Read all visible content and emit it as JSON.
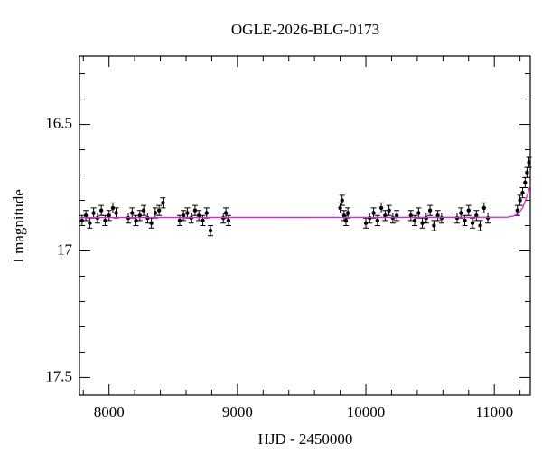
{
  "chart_data": {
    "type": "scatter",
    "title": "OGLE-2026-BLG-0173",
    "x_label": "HJD - 2450000",
    "y_label": "I magnitude",
    "xlim": [
      7770,
      11280
    ],
    "ylim": [
      17.57,
      16.23
    ],
    "xticks": [
      8000,
      9000,
      10000,
      11000
    ],
    "yticks": [
      16.5,
      17,
      17.5
    ],
    "xminor_ticks": [
      7800,
      8200,
      8400,
      8600,
      8800,
      9200,
      9400,
      9600,
      9800,
      10200,
      10400,
      10600,
      10800,
      11200
    ],
    "yminor_ticks": [
      16.3,
      16.4,
      16.6,
      16.7,
      16.8,
      16.9,
      17.1,
      17.2,
      17.3,
      17.4
    ],
    "series": [
      {
        "type": "scatter",
        "color": "#000000",
        "x": [
          7790,
          7820,
          7850,
          7880,
          7910,
          7940,
          7970,
          8000,
          8030,
          8055,
          8150,
          8180,
          8210,
          8240,
          8270,
          8300,
          8330,
          8360,
          8390,
          8420,
          8550,
          8580,
          8610,
          8640,
          8670,
          8700,
          8730,
          8760,
          8790,
          8890,
          8910,
          8930,
          9800,
          9815,
          9830,
          9845,
          9860,
          10000,
          10030,
          10060,
          10090,
          10120,
          10150,
          10180,
          10210,
          10240,
          10350,
          10380,
          10410,
          10440,
          10470,
          10500,
          10530,
          10560,
          10590,
          10710,
          10740,
          10770,
          10800,
          10830,
          10860,
          10890,
          10920,
          10950,
          11180,
          11200,
          11220,
          11240,
          11255,
          11270
        ],
        "values": [
          16.88,
          16.86,
          16.89,
          16.85,
          16.87,
          16.84,
          16.88,
          16.86,
          16.83,
          16.85,
          16.87,
          16.85,
          16.88,
          16.86,
          16.84,
          16.87,
          16.89,
          16.85,
          16.84,
          16.81,
          16.88,
          16.86,
          16.85,
          16.87,
          16.84,
          16.86,
          16.88,
          16.85,
          16.92,
          16.87,
          16.85,
          16.88,
          16.83,
          16.8,
          16.86,
          16.88,
          16.85,
          16.89,
          16.87,
          16.85,
          16.88,
          16.83,
          16.86,
          16.84,
          16.87,
          16.86,
          16.86,
          16.88,
          16.85,
          16.89,
          16.87,
          16.84,
          16.9,
          16.86,
          16.87,
          16.87,
          16.85,
          16.88,
          16.84,
          16.89,
          16.86,
          16.9,
          16.83,
          16.87,
          16.84,
          16.8,
          16.77,
          16.73,
          16.69,
          16.65
        ],
        "errors": [
          0.02,
          0.02,
          0.02,
          0.02,
          0.02,
          0.02,
          0.02,
          0.02,
          0.02,
          0.02,
          0.02,
          0.02,
          0.02,
          0.02,
          0.02,
          0.02,
          0.02,
          0.02,
          0.02,
          0.02,
          0.02,
          0.02,
          0.02,
          0.02,
          0.02,
          0.02,
          0.02,
          0.02,
          0.02,
          0.02,
          0.02,
          0.02,
          0.02,
          0.02,
          0.02,
          0.02,
          0.02,
          0.02,
          0.02,
          0.02,
          0.02,
          0.02,
          0.02,
          0.02,
          0.02,
          0.02,
          0.02,
          0.02,
          0.02,
          0.02,
          0.02,
          0.02,
          0.02,
          0.02,
          0.02,
          0.02,
          0.02,
          0.02,
          0.02,
          0.02,
          0.02,
          0.02,
          0.02,
          0.02,
          0.02,
          0.02,
          0.02,
          0.02,
          0.02,
          0.02
        ]
      },
      {
        "type": "line",
        "color": "#e020e0",
        "x": [
          7770,
          11100,
          11150,
          11190,
          11220,
          11250,
          11280
        ],
        "values": [
          16.868,
          16.867,
          16.862,
          16.85,
          16.83,
          16.79,
          16.74
        ]
      }
    ]
  }
}
